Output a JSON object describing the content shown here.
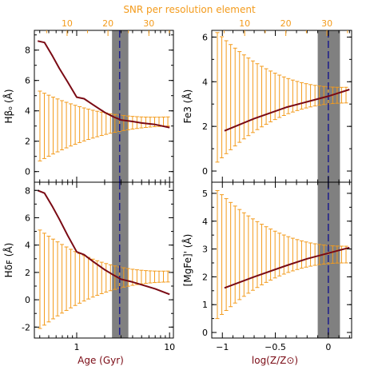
{
  "colors": {
    "curve": "#7a0a14",
    "error_bars": "#f39b1c",
    "band": "#808080",
    "vline": "#1c1c8c",
    "axis": "#000000"
  },
  "chart_data": {
    "type": "line",
    "top_axis_label": "SNR per resolution element",
    "top_ticks": [
      "10",
      "20",
      "30"
    ],
    "top_tick_values": [
      10,
      20,
      30
    ],
    "panels": [
      {
        "id": "hbeta-o-vs-age",
        "ylabel": "Hβₒ (Å)",
        "xscale": "log",
        "xlim": [
          0.35,
          11
        ],
        "ylim": [
          -0.7,
          9.3
        ],
        "yticks": [
          0,
          2,
          4,
          6,
          8
        ],
        "band": [
          2.4,
          3.6
        ],
        "vline": 2.9,
        "series": {
          "x": [
            0.38,
            0.45,
            0.55,
            0.65,
            0.8,
            1.0,
            1.2,
            1.5,
            2.0,
            2.5,
            3.0,
            4.0,
            5.0,
            7.0,
            10.0
          ],
          "y": [
            8.6,
            8.5,
            7.6,
            6.8,
            5.9,
            4.9,
            4.8,
            4.4,
            3.9,
            3.6,
            3.4,
            3.3,
            3.2,
            3.1,
            2.9
          ]
        },
        "error_bars": {
          "n": 30,
          "center_start": 3.0,
          "center_end": 3.3,
          "half_start": 2.3,
          "half_end": 0.3
        }
      },
      {
        "id": "fe3-vs-metallicity",
        "ylabel": "Fe3 (Å)",
        "xscale": "linear",
        "xlim": [
          -1.1,
          0.22
        ],
        "ylim": [
          -0.5,
          6.3
        ],
        "yticks": [
          0,
          2,
          4,
          6
        ],
        "band": [
          -0.1,
          0.11
        ],
        "vline": 0.0,
        "series": {
          "x": [
            -0.98,
            -0.7,
            -0.4,
            -0.2,
            0.0,
            0.2
          ],
          "y": [
            1.8,
            2.35,
            2.85,
            3.1,
            3.35,
            3.65
          ]
        },
        "error_bars": {
          "n": 30,
          "center_start": 3.3,
          "center_end": 3.4,
          "half_start": 2.9,
          "half_end": 0.35
        }
      },
      {
        "id": "hdelta-f-vs-age",
        "ylabel": "Hδꜰ (Å)",
        "xscale": "log",
        "xlim": [
          0.35,
          11
        ],
        "ylim": [
          -2.8,
          8.6
        ],
        "yticks": [
          -2,
          0,
          2,
          4,
          6,
          8
        ],
        "band": [
          2.4,
          3.6
        ],
        "vline": 2.9,
        "series": {
          "x": [
            0.38,
            0.45,
            0.55,
            0.65,
            0.8,
            1.0,
            1.2,
            1.5,
            2.0,
            2.5,
            3.0,
            4.0,
            5.0,
            7.0,
            10.0
          ],
          "y": [
            8.0,
            7.8,
            6.8,
            5.9,
            4.7,
            3.5,
            3.3,
            2.8,
            2.2,
            1.8,
            1.5,
            1.3,
            1.1,
            0.8,
            0.4
          ]
        },
        "error_bars": {
          "n": 30,
          "center_start": 1.5,
          "center_end": 1.7,
          "half_start": 3.6,
          "half_end": 0.4
        }
      },
      {
        "id": "mgfe-vs-metallicity",
        "ylabel": "[MgFe]' (Å)",
        "xscale": "linear",
        "xlim": [
          -1.1,
          0.22
        ],
        "ylim": [
          -0.2,
          5.4
        ],
        "yticks": [
          0,
          1,
          2,
          3,
          4,
          5
        ],
        "band": [
          -0.1,
          0.11
        ],
        "vline": 0.0,
        "series": {
          "x": [
            -0.98,
            -0.7,
            -0.4,
            -0.2,
            0.0,
            0.2
          ],
          "y": [
            1.6,
            2.0,
            2.4,
            2.65,
            2.85,
            3.05
          ]
        },
        "error_bars": {
          "n": 30,
          "center_start": 2.8,
          "center_end": 2.8,
          "half_start": 2.3,
          "half_end": 0.3
        }
      }
    ],
    "x_axes": [
      {
        "label": "Age (Gyr)",
        "ticks": [
          "1",
          "10"
        ],
        "tick_values": [
          1,
          10
        ]
      },
      {
        "label": "log(Z/Z⊙)",
        "ticks": [
          "−1",
          "−0.5",
          "0"
        ],
        "tick_values": [
          -1,
          -0.5,
          0
        ]
      }
    ]
  }
}
